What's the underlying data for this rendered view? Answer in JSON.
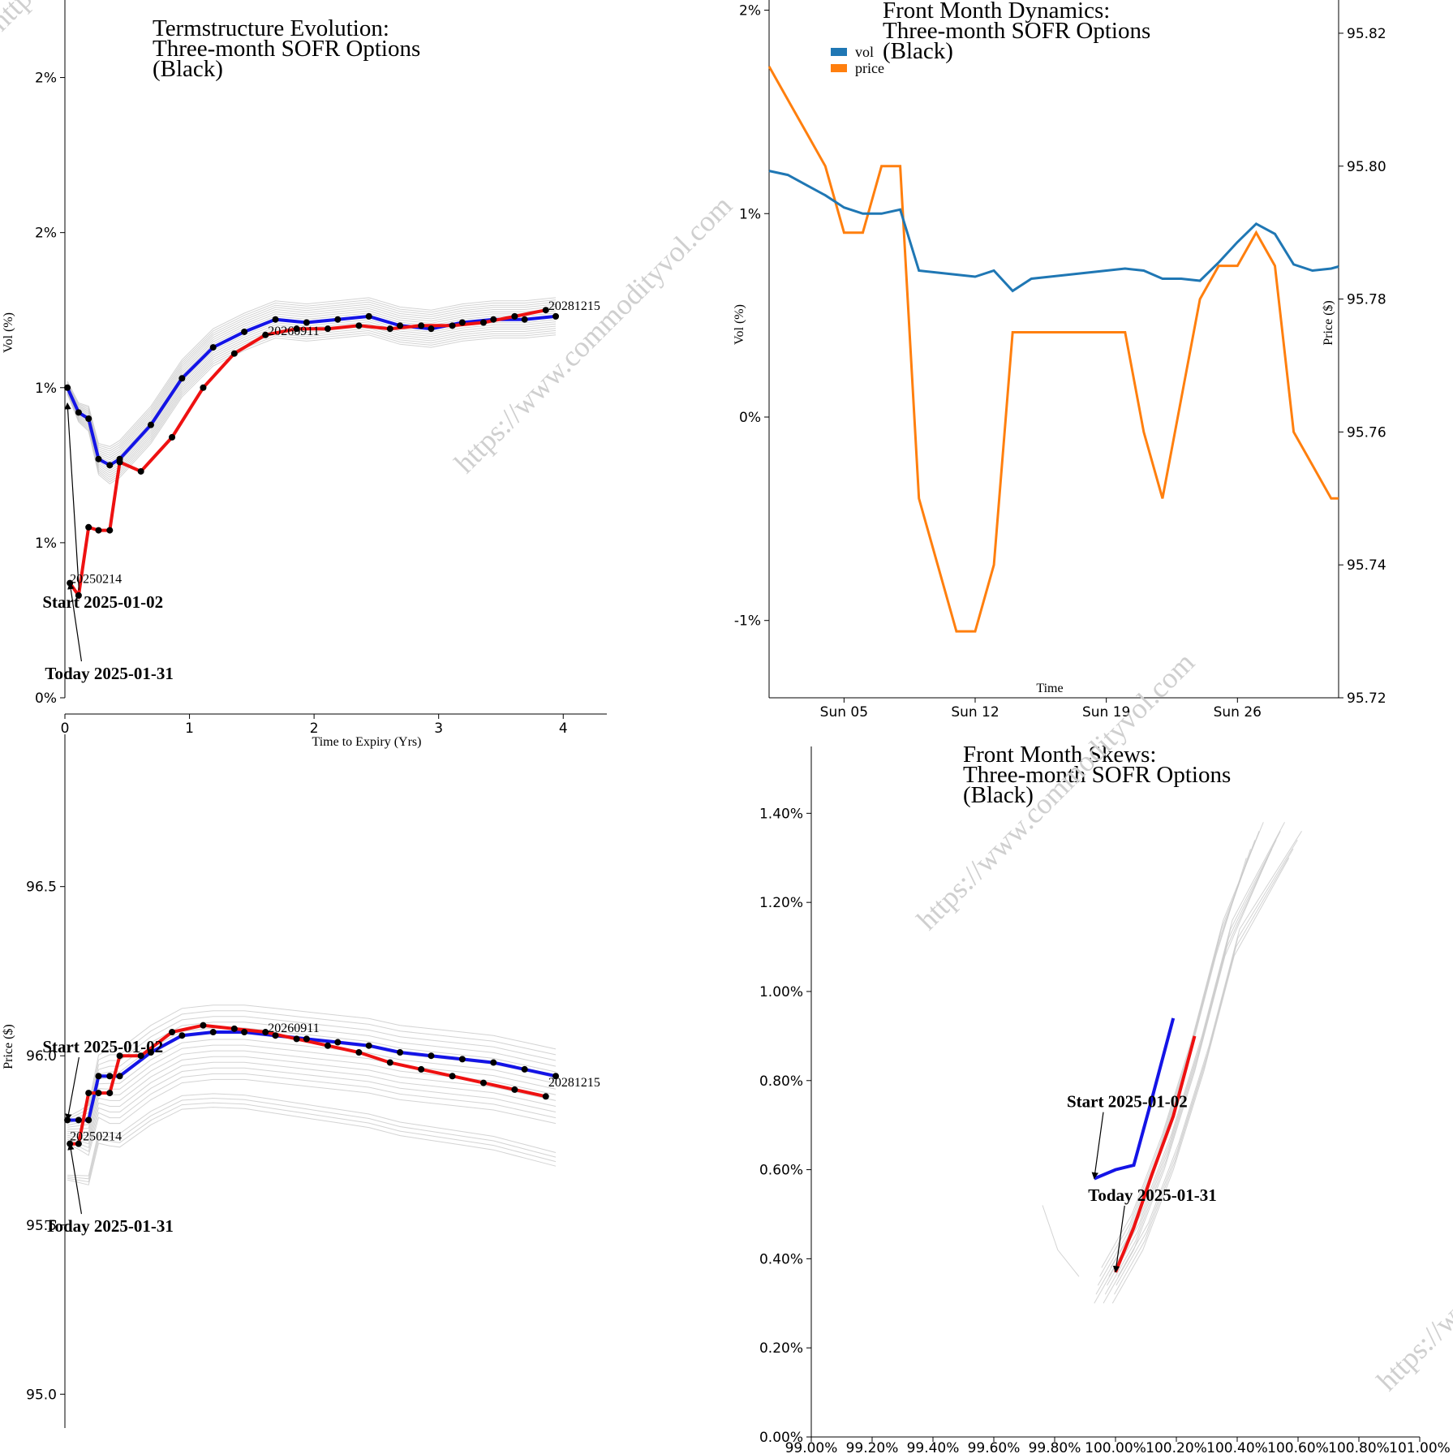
{
  "watermark_text": "https://www.commodityvol.com",
  "colors": {
    "start": "#1414e6",
    "today": "#ee1111",
    "vol": "#1f77b4",
    "price": "#ff7f0e",
    "history": "#c8c8c8"
  },
  "chart_data": [
    {
      "id": "termstructure-vol",
      "type": "line",
      "title": [
        "Termstructure Evolution:",
        "Three-month SOFR Options",
        "(Black)"
      ],
      "xlabel": "Time to Expiry (Yrs)",
      "ylabel": "Vol (%)",
      "xlim": [
        0,
        4.35
      ],
      "ylim": [
        0.1,
        2.35
      ],
      "x_ticks": [
        0,
        1,
        2,
        3,
        4
      ],
      "y_ticks": [
        0.1,
        0.6,
        1.1,
        1.6,
        2.1
      ],
      "y_tick_labels": [
        "0%",
        "1%",
        "1%",
        "2%",
        "2%"
      ],
      "point_labels": [
        {
          "text": "20250214",
          "x": 0.04,
          "y": 0.47
        },
        {
          "text": "20260911",
          "x": 1.63,
          "y": 1.27
        },
        {
          "text": "20281215",
          "x": 3.88,
          "y": 1.35
        }
      ],
      "annotations": [
        {
          "text": "Start 2025-01-02",
          "x": -0.18,
          "y": 0.39,
          "target_x": 0.02,
          "target_y": 1.05
        },
        {
          "text": "Today 2025-01-31",
          "x": -0.16,
          "y": 0.16,
          "target_x": 0.04,
          "target_y": 0.47
        }
      ],
      "series": [
        {
          "name": "Start 2025-01-02",
          "role": "start",
          "x": [
            0.02,
            0.11,
            0.19,
            0.27,
            0.36,
            0.44,
            0.69,
            0.94,
            1.19,
            1.44,
            1.69,
            1.94,
            2.19,
            2.44,
            2.69,
            2.94,
            3.19,
            3.44,
            3.69,
            3.94
          ],
          "y": [
            1.1,
            1.02,
            1.0,
            0.87,
            0.85,
            0.87,
            0.98,
            1.13,
            1.23,
            1.28,
            1.32,
            1.31,
            1.32,
            1.33,
            1.3,
            1.29,
            1.31,
            1.32,
            1.32,
            1.33
          ]
        },
        {
          "name": "Today 2025-01-31",
          "role": "today",
          "x": [
            0.04,
            0.11,
            0.19,
            0.27,
            0.36,
            0.44,
            0.61,
            0.86,
            1.11,
            1.36,
            1.61,
            1.86,
            2.11,
            2.36,
            2.61,
            2.86,
            3.11,
            3.36,
            3.61,
            3.86
          ],
          "y": [
            0.47,
            0.43,
            0.65,
            0.64,
            0.64,
            0.86,
            0.83,
            0.94,
            1.1,
            1.21,
            1.27,
            1.29,
            1.29,
            1.3,
            1.29,
            1.3,
            1.3,
            1.31,
            1.33,
            1.35
          ]
        }
      ]
    },
    {
      "id": "termstructure-price",
      "type": "line",
      "xlabel": "",
      "ylabel": "Price ($)",
      "xlim": [
        0,
        4.35
      ],
      "ylim": [
        94.9,
        96.95
      ],
      "y_ticks": [
        95.0,
        95.5,
        96.0,
        96.5
      ],
      "y_tick_labels": [
        "95.0",
        "95.5",
        "96.0",
        "96.5"
      ],
      "point_labels": [
        {
          "text": "20250214",
          "x": 0.04,
          "y": 95.75
        },
        {
          "text": "20260911",
          "x": 1.63,
          "y": 96.07
        },
        {
          "text": "20281215",
          "x": 3.88,
          "y": 95.91
        }
      ],
      "annotations": [
        {
          "text": "Start 2025-01-02",
          "x": -0.18,
          "y": 96.01,
          "target_x": 0.02,
          "target_y": 95.81
        },
        {
          "text": "Today 2025-01-31",
          "x": -0.16,
          "y": 95.48,
          "target_x": 0.04,
          "target_y": 95.74
        }
      ],
      "series": [
        {
          "name": "Start 2025-01-02",
          "role": "start",
          "x": [
            0.02,
            0.11,
            0.19,
            0.27,
            0.36,
            0.44,
            0.69,
            0.94,
            1.19,
            1.44,
            1.69,
            1.94,
            2.19,
            2.44,
            2.69,
            2.94,
            3.19,
            3.44,
            3.69,
            3.94
          ],
          "y": [
            95.81,
            95.81,
            95.81,
            95.94,
            95.94,
            95.94,
            96.01,
            96.06,
            96.07,
            96.07,
            96.06,
            96.05,
            96.04,
            96.03,
            96.01,
            96.0,
            95.99,
            95.98,
            95.96,
            95.94
          ]
        },
        {
          "name": "Today 2025-01-31",
          "role": "today",
          "x": [
            0.04,
            0.11,
            0.19,
            0.27,
            0.36,
            0.44,
            0.61,
            0.86,
            1.11,
            1.36,
            1.61,
            1.86,
            2.11,
            2.36,
            2.61,
            2.86,
            3.11,
            3.36,
            3.61,
            3.86
          ],
          "y": [
            95.74,
            95.74,
            95.89,
            95.89,
            95.89,
            96.0,
            96.0,
            96.07,
            96.09,
            96.08,
            96.07,
            96.05,
            96.03,
            96.01,
            95.98,
            95.96,
            95.94,
            95.92,
            95.9,
            95.88
          ]
        }
      ]
    },
    {
      "id": "front-month-dynamics",
      "type": "line",
      "title": [
        "Front Month Dynamics:",
        "Three-month SOFR Options",
        "(Black)"
      ],
      "xlabel": "Time",
      "ylabel": "Vol (%)",
      "y2label": "Price ($)",
      "xlim": [
        1,
        31.4
      ],
      "ylim": [
        -1.38,
        2.05
      ],
      "y_ticks": [
        -1,
        0,
        1,
        2
      ],
      "y_tick_labels": [
        "-1%",
        "0%",
        "1%",
        "2%"
      ],
      "x_ticks": [
        5,
        12,
        19,
        26
      ],
      "x_tick_labels": [
        "Sun 05",
        "Sun 12",
        "Sun 19",
        "Sun 26"
      ],
      "y2lim": [
        95.72,
        95.825
      ],
      "y2_ticks": [
        95.72,
        95.74,
        95.76,
        95.78,
        95.8,
        95.82
      ],
      "y2_tick_labels": [
        "95.72",
        "95.74",
        "95.76",
        "95.78",
        "95.80",
        "95.82"
      ],
      "legend": {
        "placement": "top-left",
        "entries": [
          "vol",
          "price"
        ]
      },
      "series": [
        {
          "name": "vol",
          "axis": "left",
          "x": [
            1,
            2,
            3,
            4,
            5,
            6,
            7,
            8,
            9,
            10,
            11,
            12,
            13,
            14,
            15,
            16,
            17,
            18,
            19,
            20,
            21,
            22,
            23,
            24,
            25,
            26,
            27,
            28,
            29,
            30,
            31,
            31.4
          ],
          "y": [
            1.21,
            1.19,
            1.14,
            1.09,
            1.03,
            1.0,
            1.0,
            1.02,
            0.72,
            0.71,
            0.7,
            0.69,
            0.72,
            0.62,
            0.68,
            0.69,
            0.7,
            0.71,
            0.72,
            0.73,
            0.72,
            0.68,
            0.68,
            0.67,
            0.76,
            0.86,
            0.95,
            0.9,
            0.75,
            0.72,
            0.73,
            0.74
          ]
        },
        {
          "name": "price",
          "axis": "right",
          "x": [
            1,
            2,
            3,
            4,
            5,
            6,
            7,
            8,
            9,
            10,
            11,
            12,
            13,
            14,
            15,
            16,
            17,
            18,
            19,
            20,
            21,
            22,
            23,
            24,
            25,
            26,
            27,
            28,
            29,
            30,
            31,
            31.4
          ],
          "y": [
            95.815,
            95.81,
            95.805,
            95.8,
            95.79,
            95.79,
            95.8,
            95.8,
            95.75,
            95.74,
            95.73,
            95.73,
            95.74,
            95.775,
            95.775,
            95.775,
            95.775,
            95.775,
            95.775,
            95.775,
            95.76,
            95.75,
            95.765,
            95.78,
            95.785,
            95.785,
            95.79,
            95.785,
            95.76,
            95.755,
            95.75,
            95.75
          ]
        }
      ]
    },
    {
      "id": "front-month-skews",
      "type": "line",
      "title": [
        "Front Month Skews:",
        "Three-month SOFR Options",
        "(Black)"
      ],
      "xlim": [
        99.0,
        101.0
      ],
      "ylim": [
        0.0,
        1.55
      ],
      "x_ticks": [
        99.0,
        99.2,
        99.4,
        99.6,
        99.8,
        100.0,
        100.2,
        100.4,
        100.6,
        100.8,
        101.0
      ],
      "x_tick_labels": [
        "99.00%",
        "99.20%",
        "99.40%",
        "99.60%",
        "99.80%",
        "100.00%",
        "100.20%",
        "100.40%",
        "100.60%",
        "100.80%",
        "101.00%"
      ],
      "y_ticks": [
        0.0,
        0.2,
        0.4,
        0.6,
        0.8,
        1.0,
        1.2,
        1.4
      ],
      "y_tick_labels": [
        "0.00%",
        "0.20%",
        "0.40%",
        "0.60%",
        "0.80%",
        "1.00%",
        "1.20%",
        "1.40%"
      ],
      "annotations": [
        {
          "text": "Start 2025-01-02",
          "x": 99.84,
          "y": 0.74,
          "target_x": 99.93,
          "target_y": 0.58
        },
        {
          "text": "Today 2025-01-31",
          "x": 99.91,
          "y": 0.53,
          "target_x": 100.0,
          "target_y": 0.37
        }
      ],
      "series": [
        {
          "name": "Start 2025-01-02",
          "role": "start",
          "x": [
            99.93,
            100.0,
            100.06,
            100.12,
            100.19
          ],
          "y": [
            0.58,
            0.6,
            0.61,
            0.76,
            0.94
          ]
        },
        {
          "name": "Today 2025-01-31",
          "role": "today",
          "x": [
            100.0,
            100.06,
            100.12,
            100.19,
            100.26
          ],
          "y": [
            0.37,
            0.47,
            0.59,
            0.72,
            0.9
          ]
        }
      ]
    }
  ]
}
